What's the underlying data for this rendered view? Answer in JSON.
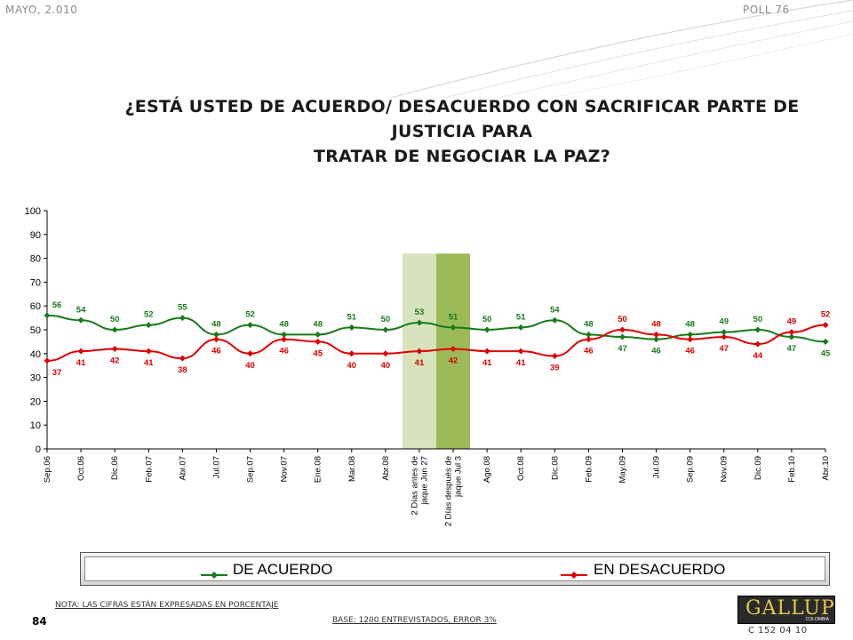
{
  "header": {
    "date": "MAYO, 2.010",
    "poll": "POLL 76"
  },
  "title": {
    "line1": "¿ESTÁ USTED DE ACUERDO/ DESACUERDO CON SACRIFICAR PARTE DE JUSTICIA PARA",
    "line2": "TRATAR DE NEGOCIAR LA PAZ?"
  },
  "chart_data": {
    "type": "line",
    "categories": [
      "Sep.06",
      "Oct.06",
      "Dic.06",
      "Feb.07",
      "Abr.07",
      "Jul.07",
      "Sep.07",
      "Nov.07",
      "Ene.08",
      "Mar.08",
      "Abr.08",
      "2 Días antes de jaque Jun 27",
      "2 Días después de jaque Jul 3",
      "Ago.08",
      "Oct.08",
      "Dic.08",
      "Feb.09",
      "May.09",
      "Jul.09",
      "Sep.09",
      "Nov.09",
      "Dic.09",
      "Feb.10",
      "Abr.10"
    ],
    "series": [
      {
        "name": "DE ACUERDO",
        "color": "#1a7a1a",
        "values": [
          56,
          54,
          50,
          52,
          55,
          48,
          52,
          48,
          48,
          51,
          50,
          53,
          51,
          50,
          51,
          54,
          48,
          47,
          46,
          48,
          49,
          50,
          47,
          45
        ]
      },
      {
        "name": "EN DESACUERDO",
        "color": "#e00000",
        "values": [
          37,
          41,
          42,
          41,
          38,
          46,
          40,
          46,
          45,
          40,
          40,
          41,
          42,
          41,
          41,
          39,
          46,
          50,
          48,
          46,
          47,
          44,
          49,
          52
        ]
      }
    ],
    "ylim": [
      0,
      100
    ],
    "yticks": [
      0,
      10,
      20,
      30,
      40,
      50,
      60,
      70,
      80,
      90,
      100
    ],
    "highlight_bands": [
      {
        "category": "2 Días antes de jaque Jun 27",
        "color": "#d6e3bc"
      },
      {
        "category": "2 Días después de jaque Jul 3",
        "color": "#9bbb59"
      }
    ],
    "grid": false,
    "legend_position": "bottom"
  },
  "legend": {
    "series1": "DE ACUERDO",
    "series2": "EN DESACUERDO"
  },
  "footer": {
    "note": "NOTA: LAS CIFRAS ESTÁN EXPRESADAS EN PORCENTAJE",
    "page": "84",
    "base": "BASE: 1200 ENTREVISTADOS, ERROR 3%",
    "code": "C 152 04 10"
  },
  "logo": {
    "name": "GALLUP",
    "sub": "COLOMBIA"
  }
}
